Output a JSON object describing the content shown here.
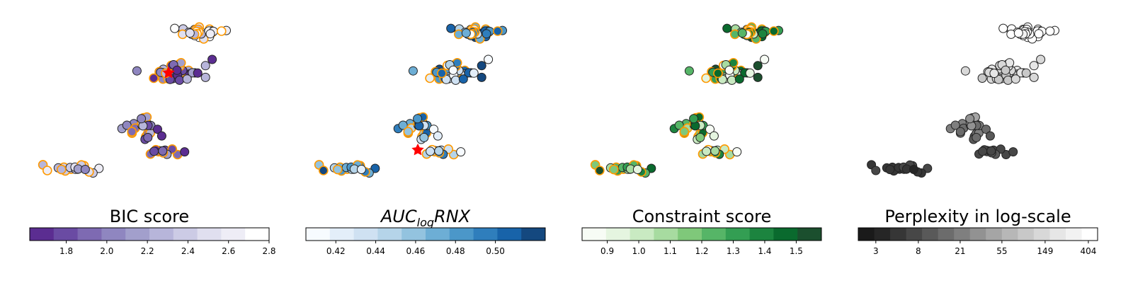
{
  "chart_data": [
    {
      "type": "scatter",
      "title": "BIC score",
      "colorbar": {
        "min": 1.62,
        "max": 2.8,
        "ticks": [
          1.8,
          2.0,
          2.2,
          2.4,
          2.6,
          2.8
        ],
        "tick_labels": [
          "1.8",
          "2.0",
          "2.2",
          "2.4",
          "2.6",
          "2.8"
        ],
        "colors": [
          "#5b2d91",
          "#6a4ba3",
          "#7e6ab2",
          "#8f86c0",
          "#a29fcc",
          "#b7b5da",
          "#cccbe5",
          "#e0dfef",
          "#eeedf6",
          "#ffffff"
        ]
      }
    },
    {
      "type": "scatter",
      "title_parts": [
        "AUC",
        "log",
        "RNX"
      ],
      "colorbar": {
        "min": 0.405,
        "max": 0.525,
        "ticks": [
          0.42,
          0.44,
          0.46,
          0.48,
          0.5
        ],
        "tick_labels": [
          "0.42",
          "0.44",
          "0.46",
          "0.48",
          "0.50"
        ],
        "colors": [
          "#f7fbff",
          "#e3eef9",
          "#cfe1f2",
          "#b5d4e9",
          "#93c3df",
          "#6daed5",
          "#4b97c9",
          "#2f7ebc",
          "#1863a9",
          "#14487f"
        ]
      }
    },
    {
      "type": "scatter",
      "title": "Constraint score",
      "colorbar": {
        "min": 0.82,
        "max": 1.58,
        "ticks": [
          0.9,
          1.0,
          1.1,
          1.2,
          1.3,
          1.4,
          1.5
        ],
        "tick_labels": [
          "0.9",
          "1.0",
          "1.1",
          "1.2",
          "1.3",
          "1.4",
          "1.5"
        ],
        "colors": [
          "#f7fcf5",
          "#e5f5e0",
          "#c9eac2",
          "#a7dba0",
          "#7fc87a",
          "#56b567",
          "#339e53",
          "#1c843f",
          "#0a6a2e",
          "#1b4f2e"
        ]
      }
    },
    {
      "type": "scatter",
      "title": "Perplexity in log-scale",
      "colorbar": {
        "scale": "log",
        "min": 2.0,
        "max": 500,
        "ticks": [
          3,
          8,
          21,
          55,
          149,
          404
        ],
        "tick_labels": [
          "3",
          "8",
          "21",
          "55",
          "149",
          "404"
        ],
        "colors": [
          "#1a1a1a",
          "#262626",
          "#363636",
          "#474747",
          "#595959",
          "#6c6c6c",
          "#7f7f7f",
          "#929292",
          "#a5a5a5",
          "#b7b7b7",
          "#c8c8c8",
          "#d8d8d8",
          "#e6e6e6",
          "#f2f2f2",
          "#ffffff"
        ]
      }
    }
  ]
}
